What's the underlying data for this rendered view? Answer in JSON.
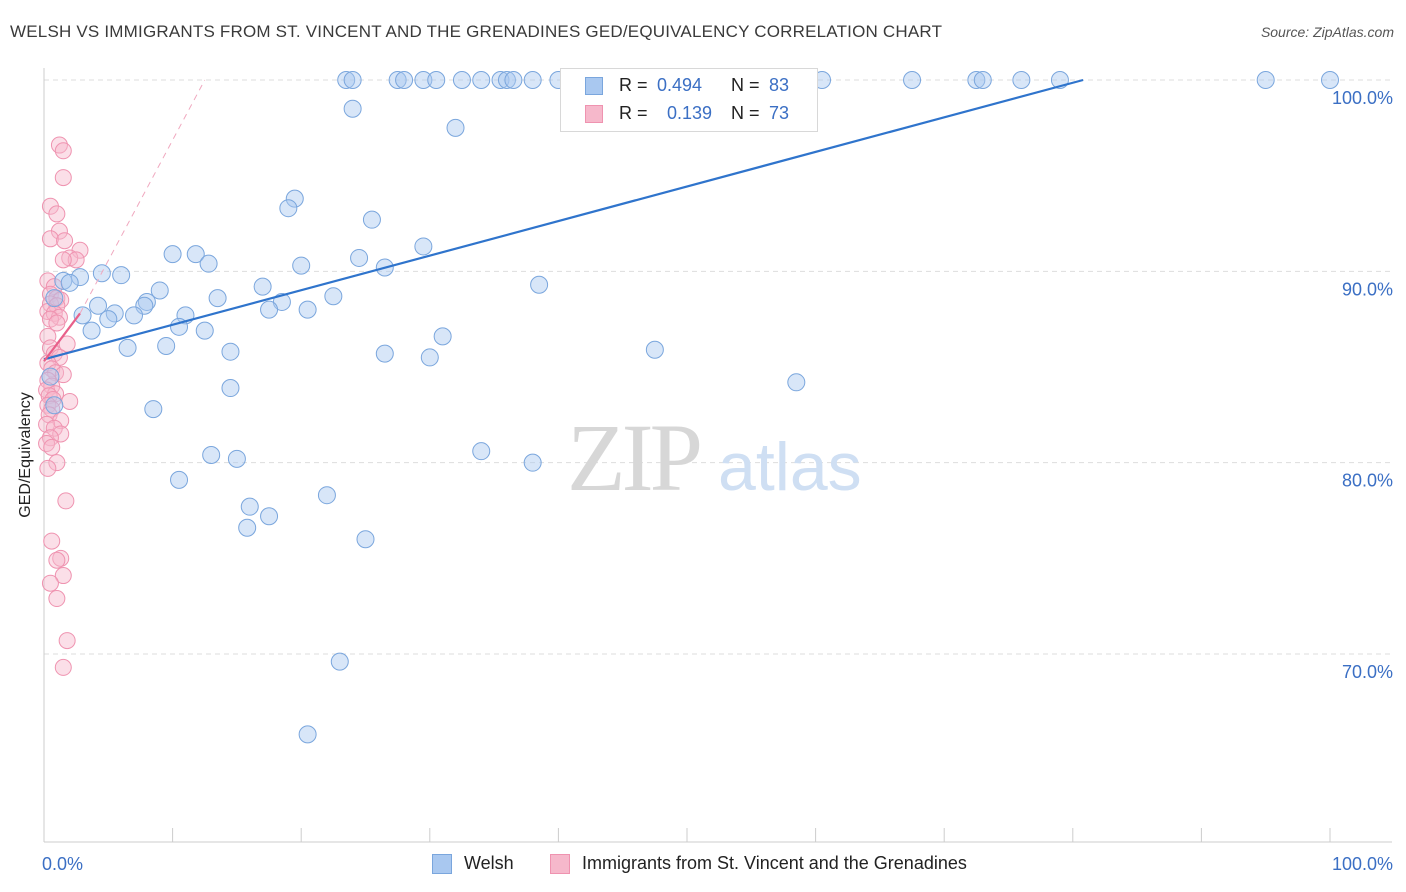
{
  "title": "WELSH VS IMMIGRANTS FROM ST. VINCENT AND THE GRENADINES GED/EQUIVALENCY CORRELATION CHART",
  "source": "Source: ZipAtlas.com",
  "watermark": {
    "zip": "ZIP",
    "atlas": "atlas"
  },
  "legend": {
    "rows": [
      {
        "r_label": "R =",
        "r_value": "0.494",
        "n_label": "N =",
        "n_value": "83"
      },
      {
        "r_label": "R =",
        "r_value": "0.139",
        "n_label": "N =",
        "n_value": "73"
      }
    ]
  },
  "bottom_legend": {
    "welsh": "Welsh",
    "immigrants": "Immigrants from St. Vincent and the Grenadines"
  },
  "colors": {
    "welsh_fill": "#a9c8f0",
    "welsh_stroke": "#7aa6dd",
    "welsh_line": "#2f74cc",
    "imm_fill": "#f6b8cb",
    "imm_stroke": "#ef93b0",
    "imm_line": "#e8608a",
    "axis_text": "#3b6fc4",
    "grid": "#dddddd"
  },
  "chart_data": {
    "type": "scatter",
    "title": "WELSH VS IMMIGRANTS FROM ST. VINCENT AND THE GRENADINES GED/EQUIVALENCY CORRELATION CHART",
    "xlabel": "",
    "ylabel": "GED/Equivalency",
    "xlim": [
      0,
      100
    ],
    "ylim": [
      59,
      101.5
    ],
    "x_tick_labels": [
      {
        "value": 0,
        "label": "0.0%"
      },
      {
        "value": 100,
        "label": "100.0%"
      }
    ],
    "y_tick_labels": [
      {
        "value": 100,
        "label": "100.0%"
      },
      {
        "value": 90,
        "label": "90.0%"
      },
      {
        "value": 80,
        "label": "80.0%"
      },
      {
        "value": 70,
        "label": "70.0%"
      }
    ],
    "x_minor_ticks": [
      0,
      10,
      20,
      30,
      40,
      50,
      60,
      70,
      80,
      90,
      100
    ],
    "series": [
      {
        "name": "Welsh",
        "R": 0.494,
        "N": 83,
        "trend": {
          "x": [
            0,
            80.8
          ],
          "y": [
            85.4,
            100.0
          ],
          "style": "solid"
        },
        "points": [
          [
            23.5,
            100
          ],
          [
            24.0,
            100
          ],
          [
            27.5,
            100
          ],
          [
            28.0,
            100
          ],
          [
            29.5,
            100
          ],
          [
            30.5,
            100
          ],
          [
            32.5,
            100
          ],
          [
            34.0,
            100
          ],
          [
            35.5,
            100
          ],
          [
            36.0,
            100
          ],
          [
            36.5,
            100
          ],
          [
            38.0,
            100
          ],
          [
            40.0,
            100
          ],
          [
            41.5,
            100
          ],
          [
            44.0,
            100
          ],
          [
            45.0,
            100
          ],
          [
            52.5,
            100
          ],
          [
            60.5,
            100
          ],
          [
            67.5,
            100
          ],
          [
            72.5,
            100
          ],
          [
            73.0,
            100
          ],
          [
            76.0,
            100
          ],
          [
            79.0,
            100
          ],
          [
            95.0,
            100
          ],
          [
            100.0,
            100
          ],
          [
            24.0,
            98.5
          ],
          [
            32.0,
            97.5
          ],
          [
            19.5,
            93.8
          ],
          [
            19.0,
            93.3
          ],
          [
            25.5,
            92.7
          ],
          [
            29.5,
            91.3
          ],
          [
            10.0,
            90.9
          ],
          [
            11.8,
            90.9
          ],
          [
            24.5,
            90.7
          ],
          [
            12.8,
            90.4
          ],
          [
            20.0,
            90.3
          ],
          [
            26.5,
            90.2
          ],
          [
            4.5,
            89.9
          ],
          [
            6.0,
            89.8
          ],
          [
            2.8,
            89.7
          ],
          [
            1.5,
            89.5
          ],
          [
            2.0,
            89.4
          ],
          [
            17.0,
            89.2
          ],
          [
            38.5,
            89.3
          ],
          [
            9.0,
            89.0
          ],
          [
            0.8,
            88.6
          ],
          [
            13.5,
            88.6
          ],
          [
            22.5,
            88.7
          ],
          [
            8.0,
            88.4
          ],
          [
            18.5,
            88.4
          ],
          [
            4.2,
            88.2
          ],
          [
            7.8,
            88.2
          ],
          [
            17.5,
            88.0
          ],
          [
            20.5,
            88.0
          ],
          [
            3.0,
            87.7
          ],
          [
            5.5,
            87.8
          ],
          [
            7.0,
            87.7
          ],
          [
            11.0,
            87.7
          ],
          [
            5.0,
            87.5
          ],
          [
            10.5,
            87.1
          ],
          [
            3.7,
            86.9
          ],
          [
            12.5,
            86.9
          ],
          [
            31.0,
            86.6
          ],
          [
            6.5,
            86.0
          ],
          [
            9.5,
            86.1
          ],
          [
            14.5,
            85.8
          ],
          [
            26.5,
            85.7
          ],
          [
            30.0,
            85.5
          ],
          [
            47.5,
            85.9
          ],
          [
            0.5,
            84.5
          ],
          [
            58.5,
            84.2
          ],
          [
            14.5,
            83.9
          ],
          [
            0.8,
            83.0
          ],
          [
            8.5,
            82.8
          ],
          [
            34.0,
            80.6
          ],
          [
            13.0,
            80.4
          ],
          [
            15.0,
            80.2
          ],
          [
            38.0,
            80.0
          ],
          [
            10.5,
            79.1
          ],
          [
            22.0,
            78.3
          ],
          [
            16.0,
            77.7
          ],
          [
            17.5,
            77.2
          ],
          [
            15.8,
            76.6
          ],
          [
            25.0,
            76.0
          ],
          [
            23.0,
            69.6
          ],
          [
            20.5,
            65.8
          ]
        ]
      },
      {
        "name": "Immigrants from St. Vincent and the Grenadines",
        "R": 0.139,
        "N": 73,
        "trend": {
          "x": [
            0,
            2.8
          ],
          "y": [
            85.3,
            87.8
          ],
          "style": "solid",
          "extension_x": [
            2.8,
            12.5
          ],
          "extension_y": [
            87.8,
            100.0
          ],
          "extension_style": "dashed"
        },
        "points": [
          [
            1.2,
            96.6
          ],
          [
            1.5,
            96.3
          ],
          [
            1.5,
            94.9
          ],
          [
            0.5,
            93.4
          ],
          [
            1.0,
            93.0
          ],
          [
            1.2,
            92.1
          ],
          [
            0.5,
            91.7
          ],
          [
            1.6,
            91.6
          ],
          [
            2.8,
            91.1
          ],
          [
            2.0,
            90.7
          ],
          [
            2.5,
            90.6
          ],
          [
            1.5,
            90.6
          ],
          [
            0.3,
            89.5
          ],
          [
            0.8,
            89.2
          ],
          [
            0.5,
            88.8
          ],
          [
            1.0,
            88.6
          ],
          [
            1.3,
            88.5
          ],
          [
            0.5,
            88.3
          ],
          [
            1.0,
            88.2
          ],
          [
            0.3,
            87.9
          ],
          [
            0.8,
            87.8
          ],
          [
            1.2,
            87.6
          ],
          [
            0.5,
            87.5
          ],
          [
            1.0,
            87.3
          ],
          [
            0.3,
            86.6
          ],
          [
            1.8,
            86.2
          ],
          [
            0.5,
            86.0
          ],
          [
            0.8,
            85.7
          ],
          [
            1.2,
            85.5
          ],
          [
            0.3,
            85.2
          ],
          [
            0.6,
            84.9
          ],
          [
            0.9,
            84.7
          ],
          [
            1.5,
            84.6
          ],
          [
            0.3,
            84.3
          ],
          [
            0.6,
            84.0
          ],
          [
            0.2,
            83.8
          ],
          [
            0.9,
            83.6
          ],
          [
            0.4,
            83.5
          ],
          [
            0.7,
            83.3
          ],
          [
            2.0,
            83.2
          ],
          [
            0.3,
            83.0
          ],
          [
            0.6,
            82.8
          ],
          [
            0.4,
            82.5
          ],
          [
            1.3,
            82.2
          ],
          [
            0.2,
            82.0
          ],
          [
            0.8,
            81.8
          ],
          [
            1.3,
            81.5
          ],
          [
            0.5,
            81.3
          ],
          [
            0.2,
            81.0
          ],
          [
            0.6,
            80.8
          ],
          [
            1.0,
            80.0
          ],
          [
            0.3,
            79.7
          ],
          [
            1.7,
            78.0
          ],
          [
            0.6,
            75.9
          ],
          [
            1.3,
            75.0
          ],
          [
            1.0,
            74.9
          ],
          [
            1.5,
            74.1
          ],
          [
            0.5,
            73.7
          ],
          [
            1.0,
            72.9
          ],
          [
            1.8,
            70.7
          ],
          [
            1.5,
            69.3
          ]
        ]
      }
    ]
  }
}
